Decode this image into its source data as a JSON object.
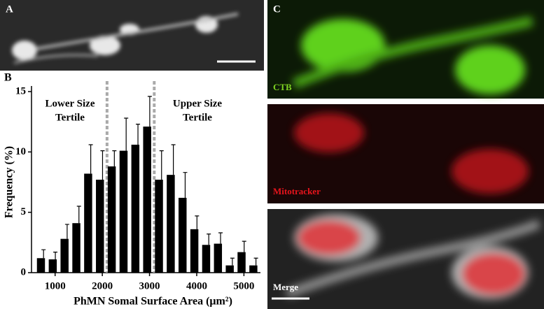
{
  "chart_data": {
    "type": "histogram",
    "panel_label": "B",
    "xlabel": "PhMN Somal Surface Area (μm²)",
    "ylabel": "Frequency (%)",
    "bins": [
      575,
      825,
      1075,
      1325,
      1575,
      1825,
      2075,
      2325,
      2575,
      2825,
      3075,
      3325,
      3575,
      3825,
      4075,
      4325,
      4575,
      4825,
      5075,
      5325
    ],
    "values": [
      1.2,
      1.1,
      2.8,
      4.1,
      8.2,
      7.7,
      8.8,
      10.1,
      10.6,
      12.1,
      7.7,
      8.1,
      6.2,
      3.6,
      2.3,
      2.4,
      0.6,
      1.7,
      0.6
    ],
    "errors": [
      0.7,
      0.6,
      1.2,
      1.4,
      2.4,
      2.4,
      1.3,
      2.7,
      1.7,
      2.5,
      2.4,
      2.5,
      2.1,
      1.1,
      0.9,
      0.9,
      0.6,
      0.9,
      0.6
    ],
    "color": "#000000",
    "xlim": [
      500,
      5350
    ],
    "xticks": [
      1000,
      2000,
      3000,
      4000,
      5000
    ],
    "ylim": [
      0,
      15
    ],
    "yticks": [
      0,
      5,
      10,
      15
    ],
    "tertile_lines": [
      2100,
      3100
    ],
    "annotations": [
      [
        "Lower Size",
        "Tertile"
      ],
      [
        "Upper Size",
        "Tertile"
      ]
    ]
  },
  "images": {
    "panel_a": "A",
    "panel_c": "C",
    "ctb": "CTB",
    "mitotracker": "Mitotracker",
    "merge": "Merge"
  }
}
